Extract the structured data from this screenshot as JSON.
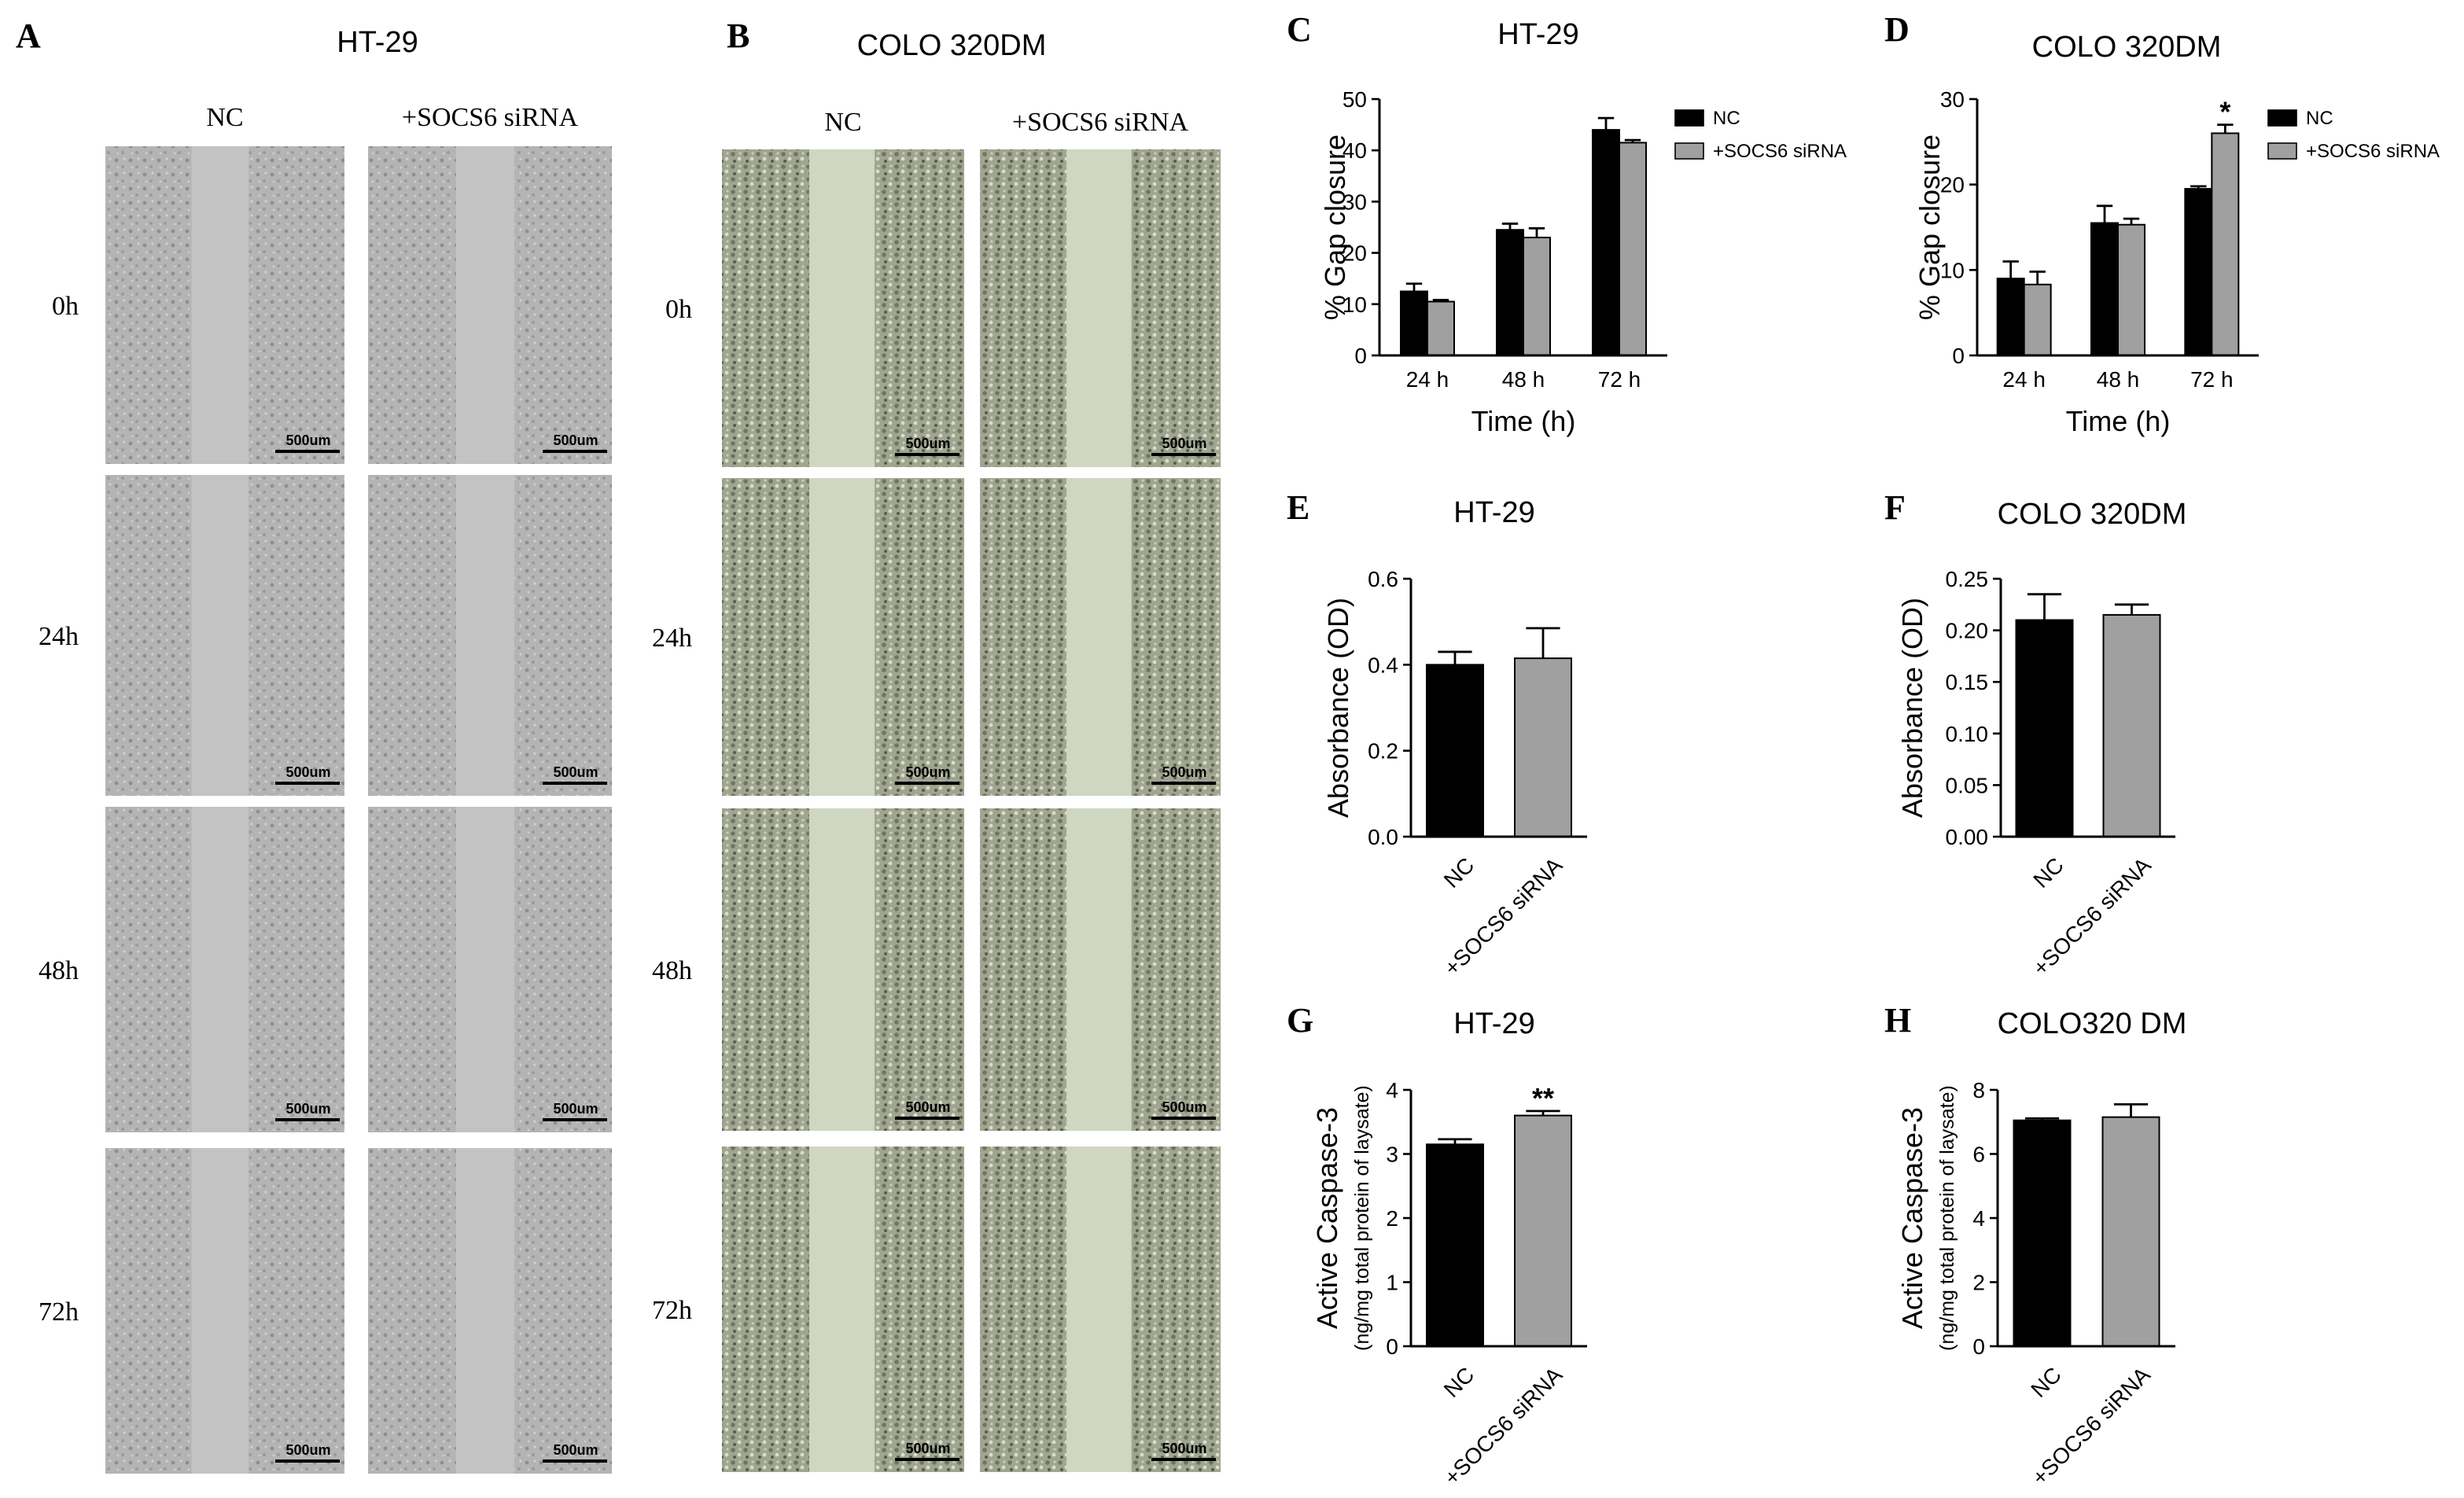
{
  "images": [
    {
      "panel_label": "A",
      "title": "HT-29",
      "columns": [
        "NC",
        "+SOCS6 siRNA"
      ],
      "rows": [
        "0h",
        "24h",
        "48h",
        "72h"
      ],
      "scale_bar": "500um"
    },
    {
      "panel_label": "B",
      "title": "COLO 320DM",
      "columns": [
        "NC",
        "+SOCS6 siRNA"
      ],
      "rows": [
        "0h",
        "24h",
        "48h",
        "72h"
      ],
      "scale_bar": "500um"
    }
  ],
  "chart_data": [
    {
      "type": "bar",
      "panel_label": "C",
      "title": "HT-29",
      "x_label": "Time (h)",
      "y_label": "% Gap closure",
      "categories": [
        "24 h",
        "48 h",
        "72 h"
      ],
      "series": [
        {
          "name": "NC",
          "color": "#000000",
          "values": [
            12.5,
            24.5,
            44
          ],
          "errors": [
            1.5,
            1.2,
            2.3
          ]
        },
        {
          "name": "+SOCS6 siRNA",
          "color": "#a0a0a0",
          "values": [
            10.5,
            23,
            41.5
          ],
          "errors": [
            0.3,
            1.8,
            0.5
          ]
        }
      ],
      "ylim": [
        0,
        50
      ],
      "yticks": [
        0,
        10,
        20,
        30,
        40,
        50
      ],
      "legend": "right"
    },
    {
      "type": "bar",
      "panel_label": "D",
      "title": "COLO 320DM",
      "x_label": "Time (h)",
      "y_label": "% Gap closure",
      "categories": [
        "24 h",
        "48 h",
        "72 h"
      ],
      "series": [
        {
          "name": "NC",
          "color": "#000000",
          "values": [
            9,
            15.5,
            19.5
          ],
          "errors": [
            2,
            2,
            0.3
          ]
        },
        {
          "name": "+SOCS6 siRNA",
          "color": "#a0a0a0",
          "values": [
            8.3,
            15.3,
            26
          ],
          "errors": [
            1.5,
            0.7,
            1
          ]
        }
      ],
      "ylim": [
        0,
        30
      ],
      "yticks": [
        0,
        10,
        20,
        30
      ],
      "legend": "right",
      "annotations": [
        {
          "text": "*",
          "category": "72 h",
          "series": "+SOCS6 siRNA"
        }
      ]
    },
    {
      "type": "bar",
      "panel_label": "E",
      "title": "HT-29",
      "y_label": "Absorbance (OD)",
      "categories": [
        "NC",
        "+SOCS6 siRNA"
      ],
      "values": [
        0.4,
        0.415
      ],
      "errors": [
        0.03,
        0.07
      ],
      "colors": [
        "#000000",
        "#a0a0a0"
      ],
      "ylim": [
        0,
        0.6
      ],
      "yticks": [
        {
          "value": 0,
          "label": "0.0"
        },
        0.2,
        0.4,
        0.6
      ]
    },
    {
      "type": "bar",
      "panel_label": "F",
      "title": "COLO 320DM",
      "y_label": "Absorbance (OD)",
      "categories": [
        "NC",
        "+SOCS6 siRNA"
      ],
      "values": [
        0.21,
        0.215
      ],
      "errors": [
        0.025,
        0.01
      ],
      "colors": [
        "#000000",
        "#a0a0a0"
      ],
      "ylim": [
        0,
        0.25
      ],
      "yticks": [
        {
          "value": 0,
          "label": "0.00"
        },
        0.05,
        {
          "value": 0.1,
          "label": "0.10"
        },
        0.15,
        {
          "value": 0.2,
          "label": "0.20"
        },
        0.25
      ]
    },
    {
      "type": "bar",
      "panel_label": "G",
      "title": "HT-29",
      "y_label": "Active Caspase-3",
      "y_label_sub": "(ng/mg total protein of laysate)",
      "categories": [
        "NC",
        "+SOCS6 siRNA"
      ],
      "values": [
        3.15,
        3.6
      ],
      "errors": [
        0.08,
        0.07
      ],
      "colors": [
        "#000000",
        "#a0a0a0"
      ],
      "ylim": [
        0,
        4
      ],
      "yticks": [
        0,
        1,
        2,
        3,
        4
      ],
      "annotations": [
        {
          "text": "**",
          "category": "+SOCS6 siRNA"
        }
      ]
    },
    {
      "type": "bar",
      "panel_label": "H",
      "title": "COLO320 DM",
      "y_label": "Active Caspase-3",
      "y_label_sub": "(ng/mg total protein of laysate)",
      "categories": [
        "NC",
        "+SOCS6 siRNA"
      ],
      "values": [
        7.05,
        7.15
      ],
      "errors": [
        0.06,
        0.4
      ],
      "colors": [
        "#000000",
        "#a0a0a0"
      ],
      "ylim": [
        0,
        8
      ],
      "yticks": [
        0,
        2,
        4,
        6,
        8
      ]
    }
  ]
}
